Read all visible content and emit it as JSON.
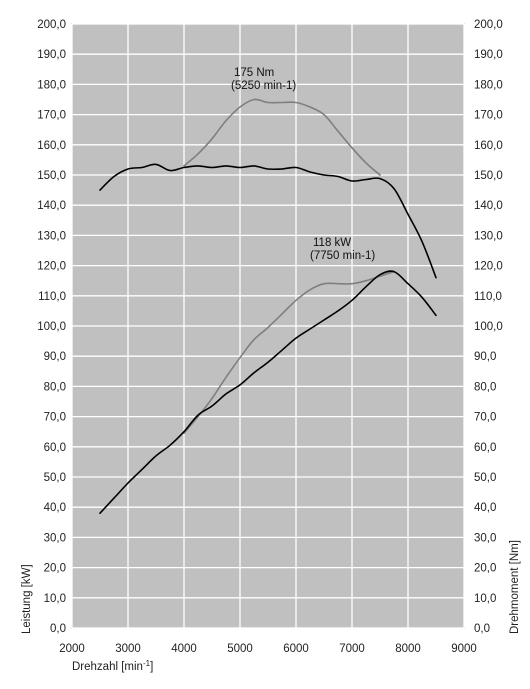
{
  "chart_data": {
    "type": "line",
    "xlabel": "Drehzahl [min",
    "xlabel_sup": "-1",
    "xlabel_close": "]",
    "ylabel_left": "Leistung [kW]",
    "ylabel_right": "Drehmoment [Nm]",
    "xlim": [
      2000,
      9000
    ],
    "ylim": [
      0,
      200
    ],
    "grid": true,
    "plot_background": "#c0c0c0",
    "x_ticks": [
      "2000",
      "3000",
      "4000",
      "5000",
      "6000",
      "7000",
      "8000",
      "9000"
    ],
    "y_ticks": [
      "0,0",
      "10,0",
      "20,0",
      "30,0",
      "40,0",
      "50,0",
      "60,0",
      "70,0",
      "80,0",
      "90,0",
      "100,0",
      "110,0",
      "120,0",
      "130,0",
      "140,0",
      "150,0",
      "160,0",
      "170,0",
      "180,0",
      "190,0",
      "200,0"
    ],
    "annotations": [
      {
        "id": "torque-peak",
        "lines": [
          "175 Nm",
          "(5250 min-1)"
        ],
        "x": 5250,
        "y": 175
      },
      {
        "id": "power-peak",
        "lines": [
          "118 kW",
          "(7750 min-1)"
        ],
        "x": 7750,
        "y": 118
      }
    ],
    "series": [
      {
        "id": "black-torque",
        "color": "#000000",
        "x": [
          2500,
          2750,
          3000,
          3250,
          3500,
          3750,
          4000,
          4250,
          4500,
          4750,
          5000,
          5250,
          5500,
          5750,
          6000,
          6250,
          6500,
          6750,
          7000,
          7250,
          7500,
          7750,
          8000,
          8250,
          8500
        ],
        "y": [
          145.0,
          149.5,
          152.0,
          152.5,
          153.5,
          151.5,
          152.5,
          153.0,
          152.5,
          153.0,
          152.5,
          153.0,
          152.0,
          152.0,
          152.5,
          151.0,
          150.0,
          149.5,
          148.0,
          148.5,
          148.8,
          145.5,
          137.0,
          128.0,
          116.0
        ]
      },
      {
        "id": "black-power",
        "color": "#000000",
        "x": [
          2500,
          2750,
          3000,
          3250,
          3500,
          3750,
          4000,
          4250,
          4500,
          4750,
          5000,
          5250,
          5500,
          5750,
          6000,
          6250,
          6500,
          6750,
          7000,
          7250,
          7500,
          7750,
          8000,
          8250,
          8500
        ],
        "y": [
          38.0,
          43.0,
          48.0,
          52.5,
          57.0,
          60.5,
          65.0,
          70.5,
          73.5,
          77.5,
          80.5,
          84.5,
          88.0,
          92.0,
          96.0,
          99.0,
          102.0,
          105.0,
          108.5,
          113.0,
          117.0,
          118.0,
          114.0,
          109.5,
          103.5
        ]
      },
      {
        "id": "gray-torque",
        "color": "#7f7f7f",
        "x": [
          4000,
          4250,
          4500,
          4750,
          5000,
          5250,
          5500,
          5750,
          6000,
          6250,
          6500,
          6750,
          7000,
          7250,
          7500
        ],
        "y": [
          153.0,
          157.0,
          162.0,
          168.0,
          172.5,
          175.0,
          174.0,
          174.0,
          174.0,
          172.5,
          170.0,
          164.5,
          159.0,
          154.0,
          150.0
        ]
      },
      {
        "id": "gray-power",
        "color": "#7f7f7f",
        "x": [
          4000,
          4250,
          4500,
          4750,
          5000,
          5250,
          5500,
          5750,
          6000,
          6250,
          6500,
          6750,
          7000,
          7250,
          7500,
          7750
        ],
        "y": [
          64.5,
          70.0,
          76.0,
          83.0,
          89.5,
          95.5,
          99.5,
          104.0,
          108.5,
          112.0,
          114.0,
          114.0,
          114.0,
          115.0,
          116.5,
          118.0
        ]
      }
    ]
  }
}
